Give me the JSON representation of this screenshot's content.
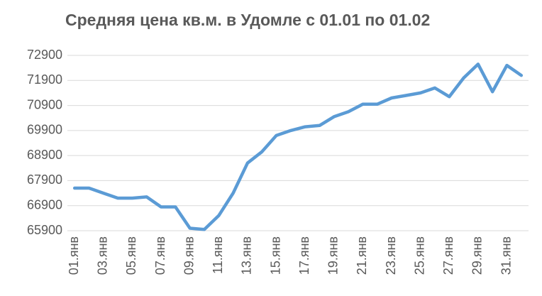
{
  "chart_data": {
    "type": "line",
    "title": "Средняя цена кв.м. в Удомле с 01.01 по 01.02",
    "categories": [
      "01.янв",
      null,
      "03.янв",
      null,
      "05.янв",
      null,
      "07.янв",
      null,
      "09.янв",
      null,
      "11.янв",
      null,
      "13.янв",
      null,
      "15.янв",
      null,
      "17.янв",
      null,
      "19.янв",
      null,
      "21.янв",
      null,
      "23.янв",
      null,
      "25.янв",
      null,
      "27.янв",
      null,
      "29.янв",
      null,
      "31.янв",
      null
    ],
    "values": [
      67600,
      67600,
      67400,
      67200,
      67200,
      67250,
      66850,
      66850,
      66000,
      65950,
      66500,
      67400,
      68600,
      69050,
      69700,
      69900,
      70050,
      70100,
      70450,
      70650,
      70950,
      70950,
      71200,
      71300,
      71400,
      71600,
      71250,
      72000,
      72550,
      71450,
      72500,
      72100
    ],
    "color": "#5b9bd5",
    "ylim": [
      65900,
      72900
    ],
    "yticks": [
      65900,
      66900,
      67900,
      68900,
      69900,
      70900,
      71900,
      72900
    ],
    "grid": true
  }
}
